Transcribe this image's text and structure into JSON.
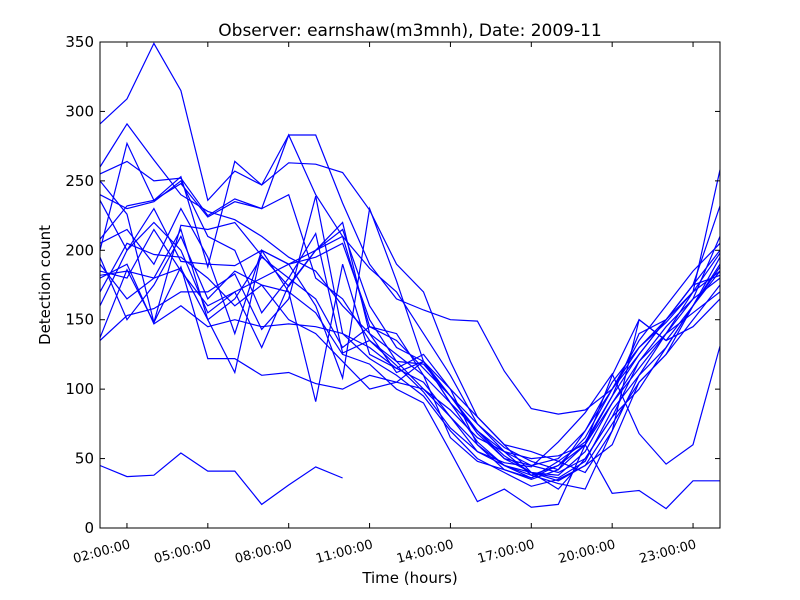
{
  "chart_data": {
    "type": "line",
    "title": "Observer: earnshaw(m3mnh), Date: 2009-11",
    "xlabel": "Time (hours)",
    "ylabel": "Detection count",
    "x": [
      1,
      2,
      3,
      4,
      5,
      6,
      7,
      8,
      9,
      10,
      11,
      12,
      13,
      14,
      15,
      16,
      17,
      18,
      19,
      20,
      21,
      22,
      23,
      24
    ],
    "xlim": [
      1,
      24
    ],
    "xticks": [
      {
        "value": 2,
        "label": "02:00:00"
      },
      {
        "value": 5,
        "label": "05:00:00"
      },
      {
        "value": 8,
        "label": "08:00:00"
      },
      {
        "value": 11,
        "label": "11:00:00"
      },
      {
        "value": 14,
        "label": "14:00:00"
      },
      {
        "value": 17,
        "label": "17:00:00"
      },
      {
        "value": 20,
        "label": "20:00:00"
      },
      {
        "value": 23,
        "label": "23:00:00"
      }
    ],
    "ylim": [
      0,
      350
    ],
    "yticks": [
      0,
      50,
      100,
      150,
      200,
      250,
      300,
      350
    ],
    "series": [
      {
        "color": "#0000ff",
        "values": [
          291,
          309,
          349,
          315,
          236,
          257,
          247,
          283,
          283,
          234,
          190,
          165,
          157,
          150,
          149,
          113,
          86,
          82,
          85,
          100,
          125,
          150,
          175,
          200
        ]
      },
      {
        "color": "#0000ff",
        "values": [
          260,
          291,
          265,
          240,
          228,
          222,
          210,
          195,
          185,
          160,
          140,
          125,
          110,
          90,
          70,
          55,
          45,
          50,
          70,
          100,
          130,
          150,
          170,
          258
        ]
      },
      {
        "color": "#0000ff",
        "values": [
          255,
          264,
          250,
          252,
          225,
          237,
          230,
          240,
          180,
          165,
          135,
          120,
          118,
          95,
          75,
          58,
          48,
          42,
          60,
          95,
          125,
          150,
          175,
          232
        ]
      },
      {
        "color": "#0000ff",
        "values": [
          250,
          226,
          148,
          218,
          215,
          220,
          196,
          174,
          200,
          220,
          140,
          112,
          120,
          95,
          70,
          52,
          40,
          38,
          55,
          90,
          115,
          140,
          165,
          210
        ]
      },
      {
        "color": "#0000ff",
        "values": [
          236,
          200,
          230,
          192,
          190,
          189,
          200,
          190,
          195,
          205,
          150,
          120,
          100,
          80,
          60,
          45,
          38,
          45,
          65,
          100,
          135,
          160,
          185,
          205
        ]
      },
      {
        "color": "#0000ff",
        "values": [
          208,
          232,
          236,
          253,
          188,
          264,
          247,
          263,
          262,
          256,
          229,
          190,
          170,
          120,
          80,
          60,
          55,
          48,
          40,
          70,
          110,
          140,
          170,
          198
        ]
      },
      {
        "color": "#0000ff",
        "values": [
          200,
          277,
          236,
          248,
          224,
          235,
          230,
          283,
          240,
          210,
          187,
          170,
          140,
          110,
          75,
          55,
          38,
          32,
          28,
          70,
          150,
          135,
          160,
          188
        ]
      },
      {
        "color": "#0000ff",
        "values": [
          185,
          180,
          215,
          185,
          160,
          170,
          180,
          190,
          200,
          210,
          145,
          135,
          115,
          95,
          68,
          50,
          45,
          40,
          50,
          80,
          120,
          145,
          165,
          180
        ]
      },
      {
        "color": "#0000ff",
        "values": [
          180,
          190,
          147,
          160,
          145,
          150,
          145,
          147,
          145,
          140,
          122,
          110,
          95,
          70,
          50,
          40,
          30,
          35,
          45,
          75,
          105,
          125,
          150,
          175
        ]
      },
      {
        "color": "#0000ff",
        "values": [
          160,
          200,
          220,
          200,
          155,
          170,
          130,
          175,
          200,
          215,
          160,
          130,
          120,
          90,
          62,
          45,
          40,
          36,
          48,
          85,
          110,
          130,
          160,
          190
        ]
      },
      {
        "color": "#0000ff",
        "values": [
          137,
          186,
          148,
          188,
          122,
          122,
          110,
          112,
          104,
          100,
          110,
          105,
          100,
          85,
          65,
          55,
          50,
          52,
          60,
          90,
          120,
          140,
          155,
          170
        ]
      },
      {
        "color": "#0000ff",
        "values": [
          135,
          153,
          158,
          170,
          170,
          183,
          143,
          165,
          239,
          140,
          130,
          115,
          125,
          100,
          80,
          60,
          40,
          28,
          50,
          80,
          100,
          130,
          160,
          195
        ]
      },
      {
        "color": "#0000ff",
        "values": [
          195,
          150,
          175,
          210,
          165,
          185,
          175,
          150,
          140,
          120,
          100,
          105,
          120,
          100,
          60,
          42,
          36,
          48,
          62,
          95,
          140,
          150,
          175,
          182
        ]
      },
      {
        "color": "#0000ff",
        "values": [
          190,
          165,
          180,
          187,
          150,
          112,
          200,
          190,
          160,
          108,
          230,
          178,
          120,
          90,
          70,
          50,
          40,
          34,
          45,
          60,
          105,
          125,
          160,
          185
        ]
      },
      {
        "color": "#0000ff",
        "values": [
          170,
          205,
          197,
          195,
          180,
          160,
          175,
          170,
          91,
          190,
          125,
          115,
          105,
          80,
          55,
          45,
          36,
          45,
          60,
          110,
          150,
          135,
          145,
          165
        ]
      },
      {
        "color": "#0000ff",
        "values": [
          182,
          185,
          180,
          215,
          150,
          165,
          195,
          180,
          165,
          130,
          145,
          140,
          110,
          65,
          48,
          42,
          35,
          42,
          70,
          105,
          130,
          148,
          170,
          185
        ]
      },
      {
        "color": "#0000ff",
        "values": [
          205,
          215,
          190,
          230,
          195,
          140,
          200,
          170,
          155,
          125,
          118,
          100,
          90,
          55,
          19,
          28,
          15,
          17,
          60,
          25,
          27,
          14,
          34,
          34
        ]
      },
      {
        "color": "#0000ff",
        "values": [
          240,
          230,
          235,
          250,
          210,
          200,
          155,
          180,
          212,
          126,
          135,
          117,
          98,
          72,
          55,
          47,
          44,
          62,
          83,
          111,
          68,
          46,
          60,
          131
        ]
      },
      {
        "color": "#0000ff",
        "values": [
          45,
          37,
          38,
          54,
          41,
          41,
          17,
          31,
          44,
          36,
          null,
          null,
          null,
          null,
          null,
          null,
          null,
          null,
          null,
          null,
          null,
          null,
          null,
          null
        ]
      }
    ]
  }
}
